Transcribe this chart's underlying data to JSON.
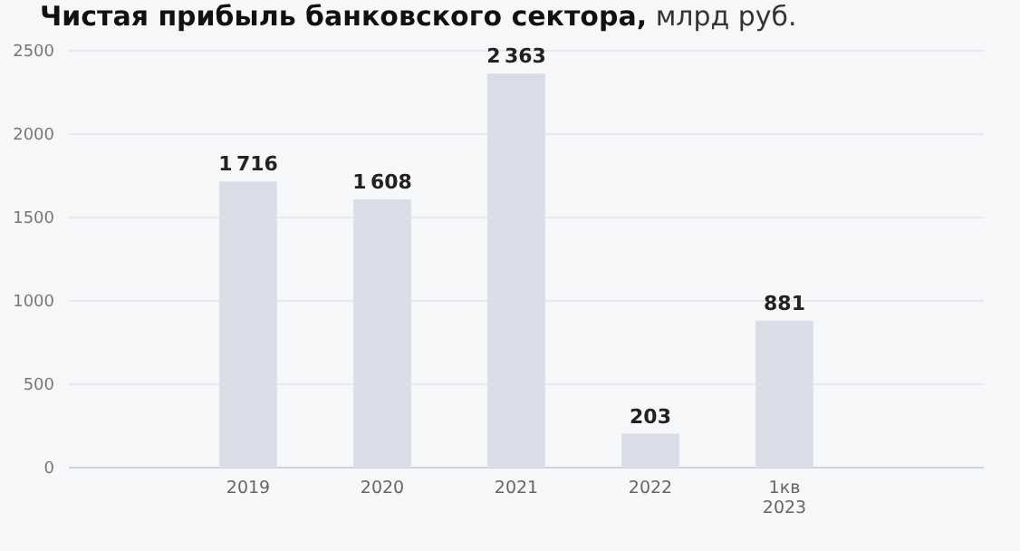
{
  "chart_data": {
    "type": "bar",
    "title": "Чистая прибыль банковского сектора,",
    "subtitle": "млрд руб.",
    "categories": [
      "2019",
      "2020",
      "2021",
      "2022",
      "1кв\n2023"
    ],
    "values": [
      1716,
      1608,
      2363,
      203,
      881
    ],
    "color": "#d8dde8",
    "ylim": [
      0,
      2500
    ],
    "yticks": [
      0,
      500,
      1000,
      1500,
      2000,
      2500
    ],
    "grid": "y",
    "data_labels": true
  }
}
